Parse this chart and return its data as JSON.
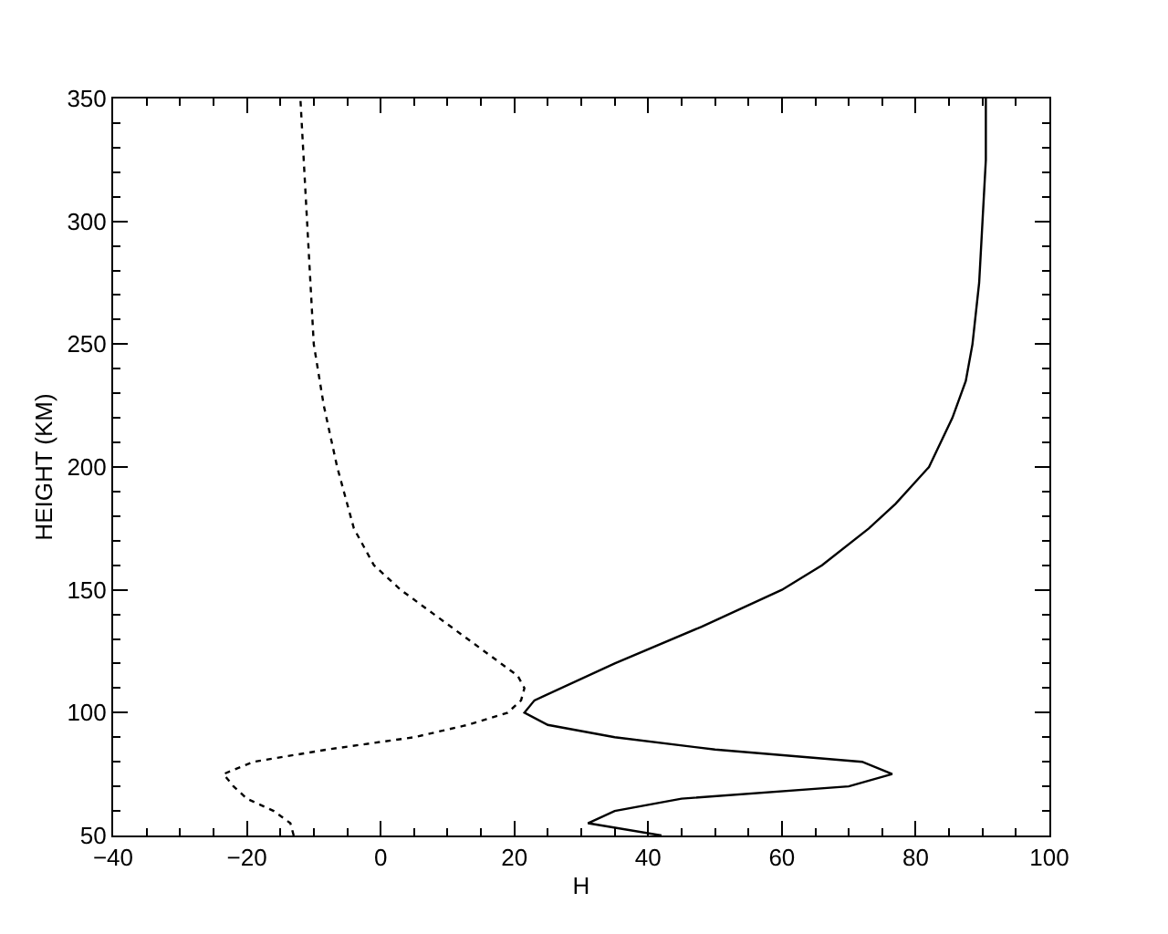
{
  "chart_data": {
    "type": "line",
    "xlabel": "H",
    "ylabel": "HEIGHT (KM)",
    "xlim": [
      -40,
      100
    ],
    "xticks": [
      -40,
      -20,
      0,
      20,
      40,
      60,
      80,
      100
    ],
    "ylim": [
      50,
      350
    ],
    "yticks": [
      50,
      100,
      150,
      200,
      250,
      300,
      350
    ],
    "series": [
      {
        "color": "#000000",
        "line_style": "solid",
        "x": [
          42,
          31,
          35,
          45,
          70,
          76.5,
          72,
          50,
          35,
          25,
          21.5,
          23,
          35,
          48,
          60,
          66,
          73,
          77,
          82,
          85.5,
          87.5,
          88.5,
          89.5,
          90,
          90.5,
          90.5
        ],
        "values": [
          50,
          55,
          60,
          65,
          70,
          75,
          80,
          85,
          90,
          95,
          100,
          105,
          120,
          135,
          150,
          160,
          175,
          185,
          200,
          220,
          235,
          250,
          275,
          300,
          325,
          350
        ]
      },
      {
        "color": "#000000",
        "line_style": "dotted",
        "x": [
          -13,
          -13.5,
          -16,
          -20,
          -22,
          -23.5,
          -19,
          -8,
          5,
          13,
          19,
          21,
          21.5,
          20.5,
          18,
          13,
          8,
          3,
          -1,
          -4,
          -5.5,
          -6.5,
          -8.5,
          -10,
          -10.5,
          -11,
          -11.5,
          -12
        ],
        "values": [
          50,
          55,
          60,
          65,
          70,
          75,
          80,
          85,
          90,
          95,
          100,
          105,
          110,
          115,
          120,
          130,
          140,
          150,
          160,
          175,
          190,
          200,
          225,
          250,
          275,
          300,
          325,
          350
        ]
      }
    ]
  }
}
